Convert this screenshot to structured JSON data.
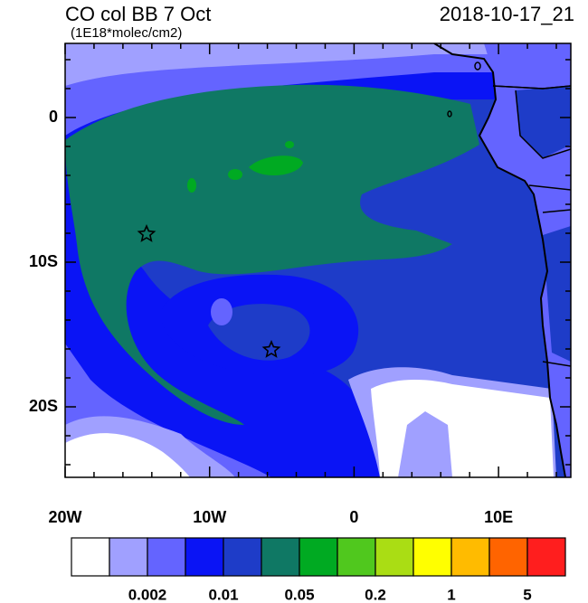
{
  "header": {
    "title": "CO col BB 7 Oct",
    "units": "(1E18*molec/cm2)",
    "date": "2018-10-17_21"
  },
  "x_axis": {
    "labels": [
      "20W",
      "10W",
      "0",
      "10E"
    ]
  },
  "y_axis": {
    "labels": [
      "0",
      "10S",
      "20S"
    ]
  },
  "colorbar": {
    "colors": [
      "#ffffff",
      "#a0a0ff",
      "#6464ff",
      "#0a14f5",
      "#1e3cc8",
      "#0f7864",
      "#00aa22",
      "#50c81e",
      "#aadd14",
      "#ffff00",
      "#ffbb00",
      "#ff6400",
      "#ff1e1e"
    ],
    "labels": [
      "0.002",
      "0.01",
      "0.05",
      "0.2",
      "1",
      "5"
    ]
  }
}
